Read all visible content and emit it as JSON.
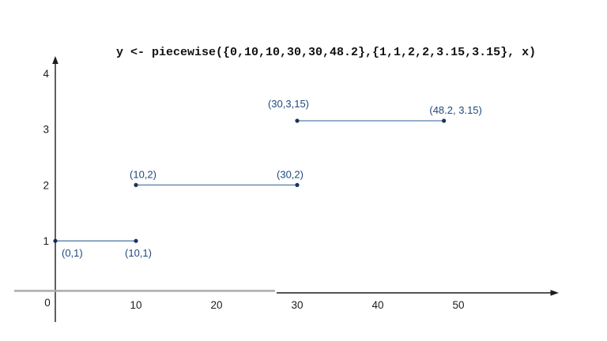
{
  "page": {
    "background_color": "#ffffff"
  },
  "colors": {
    "title_text": "#111111",
    "axis": "#1c1c1c",
    "axis_gray": "#ababab",
    "tick_text": "#1c1c1c",
    "segment_line": "#567fa9",
    "point": "#17375e",
    "label": "#1f497d"
  },
  "chart_data": {
    "type": "line",
    "title": "y <- piecewise({0,10,10,30,30,48.2},{1,1,2,2,3.15,3.15}, x)",
    "xlabel": "",
    "ylabel": "",
    "grid": false,
    "legend": "none",
    "xlim": [
      0,
      61
    ],
    "ylim": [
      0,
      4.3
    ],
    "origin_tick": "0",
    "x_ticks": [
      10,
      20,
      30,
      40,
      50
    ],
    "y_ticks": [
      1,
      2,
      3,
      4
    ],
    "segments": [
      {
        "x1": 0,
        "y1": 1,
        "x2": 10,
        "y2": 1,
        "label_start": "(0,1)",
        "label_end": "(10,1)"
      },
      {
        "x1": 10,
        "y1": 2,
        "x2": 30,
        "y2": 2,
        "label_start": "(10,2)",
        "label_end": "(30,2)"
      },
      {
        "x1": 30,
        "y1": 3.15,
        "x2": 48.2,
        "y2": 3.15,
        "label_start": "(30,3,15)",
        "label_end": "(48.2, 3.15)"
      }
    ]
  }
}
